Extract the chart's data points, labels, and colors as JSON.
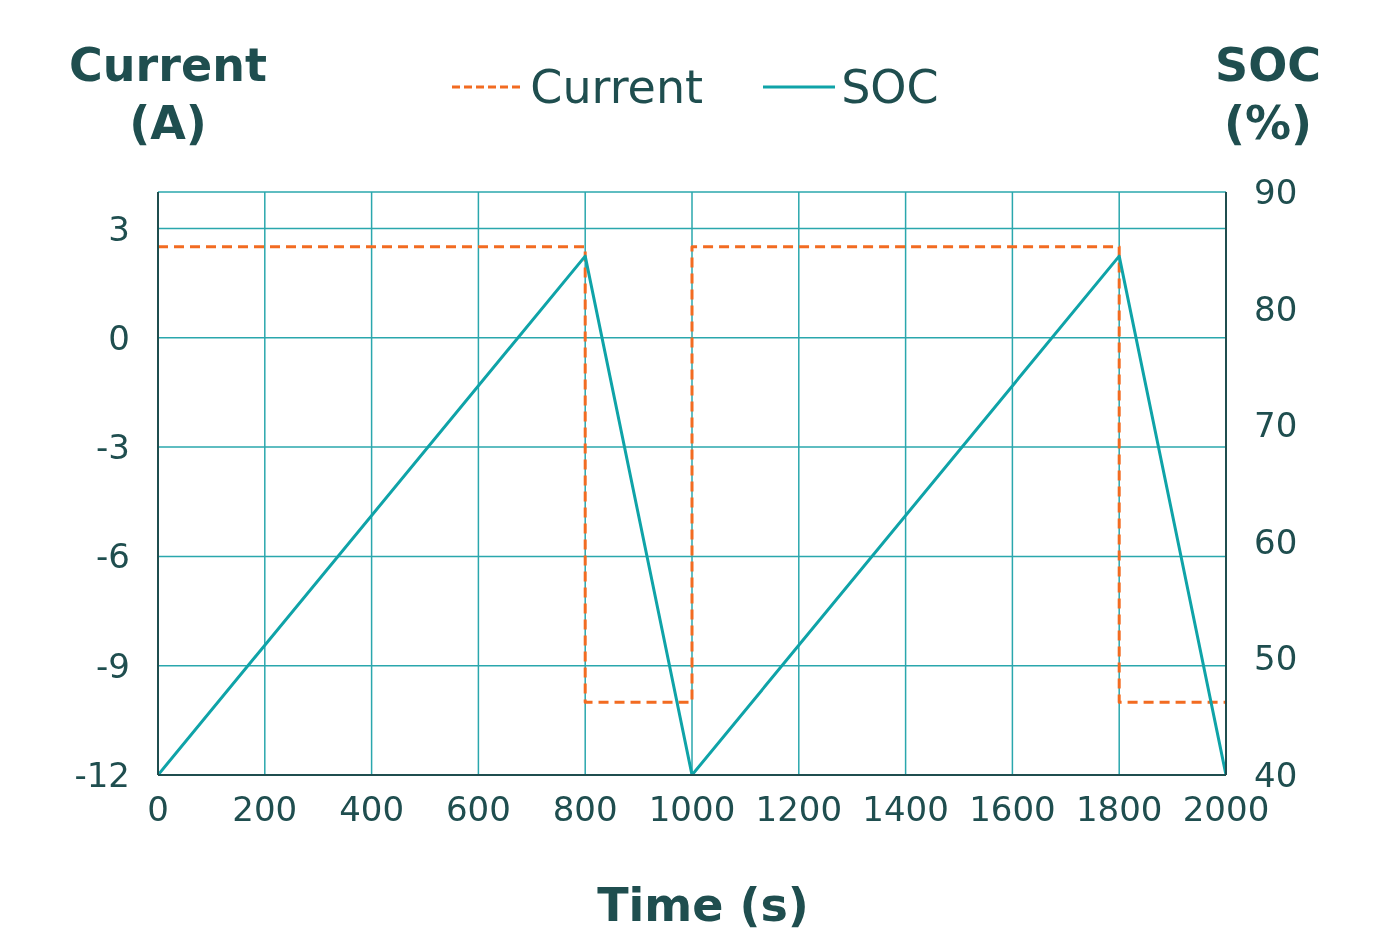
{
  "chart_data": {
    "type": "line",
    "xlabel": "Time (s)",
    "ylabel": "Current (A)",
    "y2label": "SOC (%)",
    "xlim": [
      0,
      2000
    ],
    "xticks": [
      0,
      200,
      400,
      600,
      800,
      1000,
      1200,
      1400,
      1600,
      1800,
      2000
    ],
    "ylim": [
      -12,
      4
    ],
    "yticks": [
      -12,
      -9,
      -6,
      -3,
      0,
      3
    ],
    "y2lim": [
      40,
      90
    ],
    "y2ticks": [
      40,
      50,
      60,
      70,
      80,
      90
    ],
    "grid": true,
    "legend": "top",
    "marker": "none",
    "series": [
      {
        "name": "Current",
        "color": "#f26b21",
        "line_style": "dashed",
        "x": [
          0,
          800,
          800,
          1000,
          1000,
          1800,
          1800,
          2000
        ],
        "values": [
          2.5,
          2.5,
          -10,
          -10,
          2.5,
          2.5,
          -10,
          -10
        ]
      },
      {
        "name": "SOC",
        "color": "#0fa3a8",
        "axis": "y2",
        "line_style": "solid",
        "x": [
          0,
          800,
          1000,
          1800,
          2000
        ],
        "values": [
          40,
          84.5,
          40,
          84.5,
          40
        ]
      }
    ]
  }
}
